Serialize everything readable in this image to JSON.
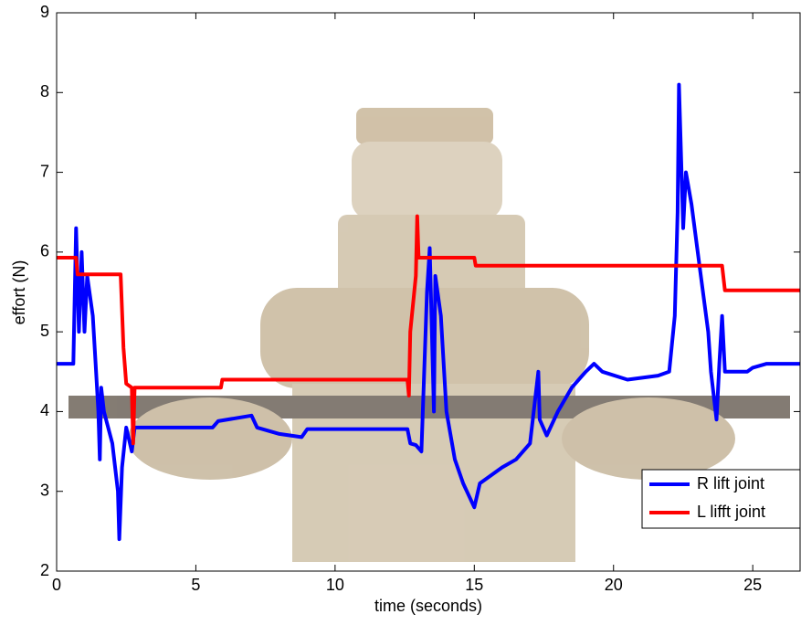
{
  "chart_data": {
    "type": "line",
    "xlabel": "time (seconds)",
    "ylabel": "effort (N)",
    "xlim": [
      0,
      26.7
    ],
    "ylim": [
      2,
      9
    ],
    "xticks": [
      0,
      5,
      10,
      15,
      20,
      25
    ],
    "yticks": [
      2,
      3,
      4,
      5,
      6,
      7,
      8,
      9
    ],
    "legend": "lower right",
    "series": [
      {
        "name": "R lift joint",
        "color": "#0000ff",
        "x": [
          0,
          0.6,
          0.7,
          0.8,
          0.9,
          1.0,
          1.1,
          1.3,
          1.4,
          1.5,
          1.55,
          1.6,
          1.7,
          2.0,
          2.2,
          2.25,
          2.35,
          2.5,
          2.7,
          2.8,
          5.6,
          5.8,
          7.0,
          7.2,
          8.0,
          8.8,
          9.0,
          12.6,
          12.7,
          12.9,
          13.1,
          13.3,
          13.4,
          13.55,
          13.6,
          13.8,
          14.0,
          14.3,
          14.6,
          15.0,
          15.2,
          15.6,
          16.0,
          16.5,
          17.0,
          17.3,
          17.35,
          17.6,
          18.0,
          18.5,
          19.0,
          19.3,
          19.6,
          20.5,
          21.6,
          22.0,
          22.2,
          22.3,
          22.35,
          22.5,
          22.6,
          22.8,
          23.1,
          23.4,
          23.5,
          23.7,
          23.8,
          23.9,
          24.0,
          24.8,
          25.0,
          25.5,
          26.7
        ],
        "values": [
          4.6,
          4.6,
          6.3,
          5.0,
          6.0,
          5.0,
          5.7,
          5.2,
          4.6,
          4.0,
          3.4,
          4.3,
          4.0,
          3.6,
          3.0,
          2.4,
          3.3,
          3.8,
          3.5,
          3.8,
          3.8,
          3.88,
          3.95,
          3.8,
          3.72,
          3.68,
          3.78,
          3.78,
          3.6,
          3.58,
          3.5,
          5.5,
          6.05,
          4.0,
          5.7,
          5.2,
          4.0,
          3.4,
          3.1,
          2.8,
          3.1,
          3.2,
          3.3,
          3.4,
          3.6,
          4.5,
          3.9,
          3.7,
          4.0,
          4.3,
          4.5,
          4.6,
          4.5,
          4.4,
          4.45,
          4.5,
          5.2,
          6.5,
          8.1,
          6.3,
          7.0,
          6.6,
          5.8,
          5.0,
          4.5,
          3.9,
          4.6,
          5.2,
          4.5,
          4.5,
          4.55,
          4.6,
          4.6
        ]
      },
      {
        "name": "L lifft joint",
        "color": "#ff0000",
        "x": [
          0,
          0.7,
          0.75,
          2.3,
          2.4,
          2.5,
          2.7,
          2.75,
          2.8,
          5.9,
          5.95,
          12.6,
          12.65,
          12.7,
          12.9,
          12.95,
          13.0,
          15.0,
          15.05,
          23.9,
          24.0,
          26.7
        ],
        "values": [
          5.93,
          5.93,
          5.72,
          5.72,
          4.8,
          4.35,
          4.3,
          3.6,
          4.3,
          4.3,
          4.4,
          4.4,
          4.2,
          5.0,
          5.7,
          6.45,
          5.93,
          5.93,
          5.83,
          5.83,
          5.52,
          5.52
        ]
      }
    ]
  }
}
